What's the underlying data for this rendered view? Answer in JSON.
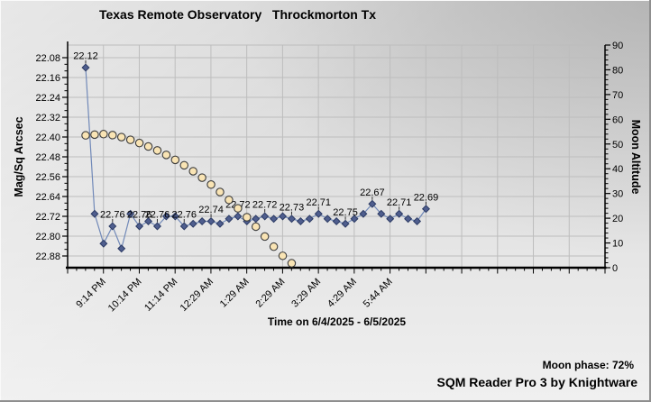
{
  "chart_data": {
    "type": "line",
    "title": "Texas Remote Observatory   Throckmorton Tx",
    "xlabel": "Time on 6/4/2025 - 6/5/2025",
    "ylabel_left": "Mag/Sq Arcsec",
    "ylabel_right": "Moon Altitude",
    "x_tick_labels": [
      "9:14 PM",
      "10:14 PM",
      "11:14 PM",
      "12:29 AM",
      "1:29 AM",
      "2:29 AM",
      "3:29 AM",
      "4:29 AM",
      "5:44 AM"
    ],
    "y_left_ticks": [
      "22.08",
      "22.16",
      "22.24",
      "22.32",
      "22.40",
      "22.48",
      "22.56",
      "22.64",
      "22.72",
      "22.80",
      "22.88"
    ],
    "y_left_range": [
      22.08,
      22.88
    ],
    "y_left_inverted": true,
    "y_right_ticks": [
      "0",
      "10",
      "20",
      "30",
      "40",
      "50",
      "60",
      "70",
      "80",
      "90"
    ],
    "y_right_range": [
      0,
      90
    ],
    "grid": true,
    "legend": "none",
    "series": [
      {
        "name": "SQM sky brightness (Mag/Sq Arcsec)",
        "axis": "left",
        "marker": "diamond",
        "values": [
          22.12,
          22.71,
          22.83,
          22.76,
          22.85,
          22.71,
          22.76,
          22.74,
          22.76,
          22.72,
          22.72,
          22.76,
          22.75,
          22.74,
          22.74,
          22.75,
          22.73,
          22.72,
          22.74,
          22.73,
          22.72,
          22.73,
          22.72,
          22.73,
          22.74,
          22.73,
          22.71,
          22.73,
          22.74,
          22.75,
          22.73,
          22.71,
          22.67,
          22.71,
          22.73,
          22.71,
          22.73,
          22.74,
          22.69
        ],
        "point_labels": {
          "0": "22.12",
          "3": "22.76",
          "6": "22.76",
          "8": "22.76",
          "11": "22.76",
          "14": "22.74",
          "17": "22.72",
          "20": "22.72",
          "23": "22.73",
          "26": "22.71",
          "29": "22.75",
          "32": "22.67",
          "35": "22.71",
          "38": "22.69"
        }
      },
      {
        "name": "Moon Altitude (degrees)",
        "axis": "right",
        "marker": "circle",
        "values": [
          53.5,
          53.8,
          54.0,
          53.6,
          52.8,
          51.7,
          50.4,
          49.0,
          47.4,
          45.6,
          43.6,
          41.4,
          39.0,
          36.4,
          33.6,
          30.6,
          27.4,
          24.0,
          20.4,
          16.6,
          12.6,
          8.5,
          4.8,
          1.8
        ]
      }
    ]
  },
  "footer": {
    "moon_phase_label": "Moon phase: 72%",
    "branding": "SQM Reader Pro 3 by Knightware"
  },
  "colors": {
    "grid": "#bdbdbd",
    "axis": "#000000",
    "sqm_line": "#7189b8",
    "sqm_marker_fill": "#4f5e8e",
    "sqm_marker_stroke": "#2b3a63",
    "moon_marker_fill": "#f9e4b4",
    "moon_marker_stroke": "#3c3c3c",
    "text": "#000000"
  }
}
